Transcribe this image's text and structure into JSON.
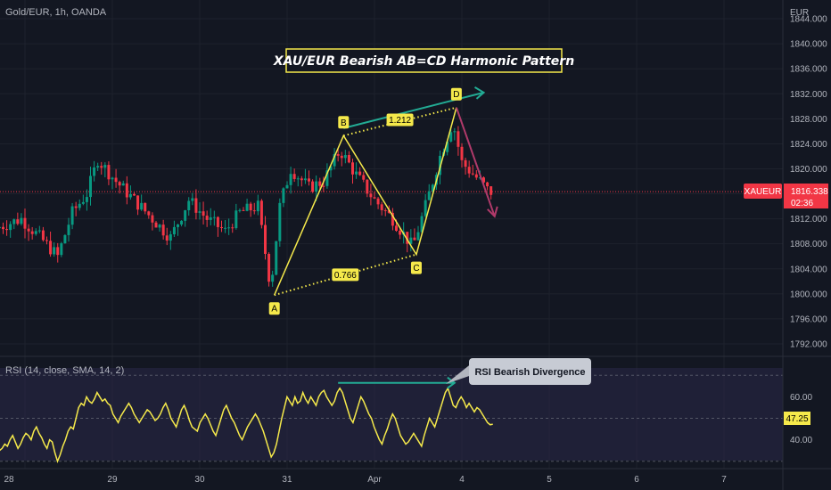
{
  "header": {
    "symbol": "Gold/EUR, 1h, OANDA",
    "currency": "EUR"
  },
  "rsi_header": {
    "label": "RSI (14, close, SMA, 14, 2)"
  },
  "price_badge": {
    "ticker": "XAUEUR",
    "value": "1816.338",
    "countdown": "02:36",
    "color": "#f23645"
  },
  "rsi_badge": {
    "value": "47.25",
    "color": "#f5e94b"
  },
  "annotations": {
    "title": "XAU/EUR Bearish AB=CD Harmonic Pattern",
    "rsi_callout": "RSI Bearish Divergence",
    "ratio_bd": "1.212",
    "ratio_ac": "0.766"
  },
  "chart_data": [
    {
      "type": "candlestick",
      "y_axis": {
        "ticks": [
          1844,
          1840,
          1836,
          1832,
          1828,
          1824,
          1820,
          1816,
          1812,
          1808,
          1804,
          1800,
          1796,
          1792
        ],
        "tick_labels": [
          "1844.000",
          "1840.000",
          "1836.000",
          "1832.000",
          "1828.000",
          "1824.000",
          "1820.000",
          "1816.000",
          "1812.000",
          "1808.000",
          "1804.000",
          "1800.000",
          "1796.000",
          "1792.000"
        ],
        "ylim": [
          1790,
          1847
        ]
      },
      "x_axis": {
        "tick_labels": [
          "28",
          "29",
          "30",
          "31",
          "Apr",
          "4",
          "5",
          "6",
          "7"
        ],
        "tick_hours": [
          0,
          24,
          48,
          72,
          96,
          120,
          144,
          168,
          192
        ]
      },
      "last_price": 1816.338,
      "pattern_points": [
        {
          "label": "A",
          "hour": 68.5,
          "price": 1799.8
        },
        {
          "label": "B",
          "hour": 87.5,
          "price": 1825.3
        },
        {
          "label": "C",
          "hour": 107.5,
          "price": 1806.3
        },
        {
          "label": "D",
          "hour": 118.5,
          "price": 1829.8
        }
      ],
      "upper_trendline": [
        {
          "hour": 87.5,
          "price": 1826.5
        },
        {
          "hour": 126,
          "price": 1832.2
        }
      ],
      "projection": [
        {
          "hour": 118.5,
          "price": 1829.8
        },
        {
          "hour": 129,
          "price": 1812.4
        }
      ],
      "colors": {
        "up": "#089981",
        "down": "#f23645",
        "pattern": "#f5e94b",
        "trend": "#22ab94",
        "projection": "#b03a6a"
      }
    },
    {
      "type": "line",
      "name": "RSI",
      "y_axis": {
        "ticks": [
          60,
          40
        ],
        "tick_labels": [
          "60.00",
          "40.00"
        ],
        "ylim": [
          27,
          78
        ]
      },
      "bands": [
        70,
        50,
        30
      ],
      "values": [
        35,
        36,
        38,
        37,
        40,
        42,
        39,
        36,
        38,
        41,
        43,
        42,
        40,
        44,
        46,
        43,
        41,
        38,
        36,
        40,
        39,
        34,
        30,
        33,
        37,
        40,
        44,
        46,
        45,
        50,
        55,
        57,
        56,
        60,
        58,
        57,
        59,
        62,
        60,
        58,
        59,
        57,
        56,
        52,
        50,
        48,
        51,
        53,
        55,
        57,
        55,
        52,
        50,
        48,
        50,
        52,
        54,
        53,
        51,
        49,
        50,
        52,
        55,
        57,
        54,
        50,
        48,
        46,
        50,
        54,
        56,
        53,
        49,
        46,
        45,
        44,
        48,
        50,
        52,
        50,
        47,
        44,
        42,
        46,
        50,
        54,
        56,
        53,
        50,
        48,
        45,
        42,
        40,
        43,
        46,
        48,
        50,
        52,
        50,
        47,
        44,
        40,
        36,
        32,
        34,
        38,
        44,
        50,
        55,
        60,
        58,
        56,
        60,
        57,
        58,
        62,
        59,
        57,
        60,
        58,
        56,
        60,
        62,
        63,
        60,
        58,
        56,
        58,
        62,
        64,
        62,
        58,
        54,
        50,
        48,
        52,
        56,
        60,
        58,
        55,
        52,
        50,
        46,
        43,
        40,
        38,
        42,
        45,
        49,
        52,
        50,
        46,
        42,
        40,
        38,
        39,
        41,
        43,
        41,
        39,
        37,
        42,
        46,
        50,
        48,
        46,
        50,
        54,
        58,
        62,
        64,
        60,
        56,
        55,
        58,
        60,
        58,
        55,
        57,
        55,
        53,
        55,
        54,
        52,
        50,
        48,
        47,
        47.25
      ],
      "divergence_line": [
        {
          "hour": 86,
          "value": 66.5
        },
        {
          "hour": 118,
          "value": 66.5
        }
      ],
      "colors": {
        "line": "#f5e94b",
        "divergence": "#22ab94"
      }
    }
  ]
}
